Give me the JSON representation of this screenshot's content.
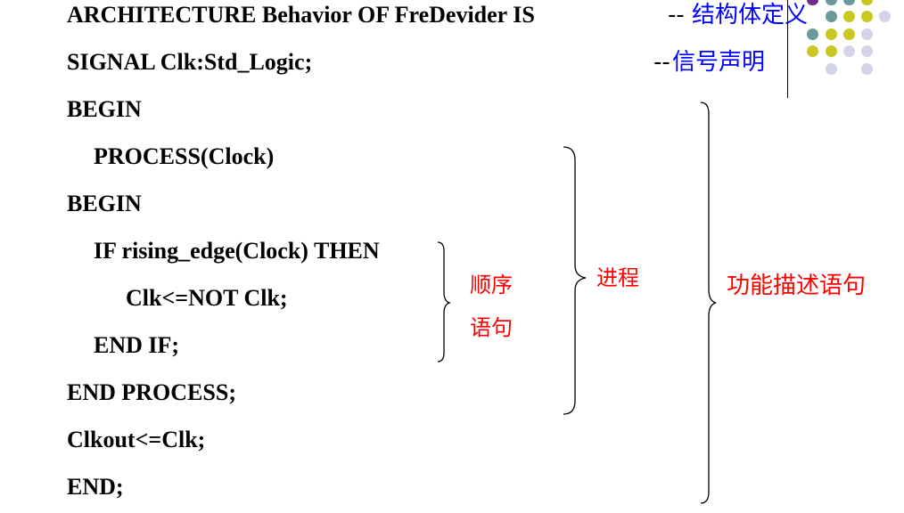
{
  "code_lines": [
    "ARCHITECTURE  Behavior  OF  FreDevider IS",
    "SIGNAL Clk:Std_Logic;",
    "BEGIN",
    "PROCESS(Clock)",
    "BEGIN",
    "IF rising_edge(Clock) THEN",
    "Clk<=NOT Clk;",
    "END IF;",
    "END PROCESS;",
    "Clkout<=Clk;",
    "END;"
  ],
  "comments": {
    "arch_prefix": "--",
    "arch_text": "结构体定义",
    "signal_prefix": "--",
    "signal_text": "信号声明"
  },
  "labels": {
    "sequential_line1": "顺序",
    "sequential_line2": "语句",
    "process": "进程",
    "functional": "功能描述语句"
  },
  "colors": {
    "code": "#000000",
    "comment_prefix": "#000000",
    "comment_text": "#0000ff",
    "label": "#ff0000",
    "dot_purple": "#6c2d8c",
    "dot_teal": "#6b9a9c",
    "dot_yellow": "#c8c820",
    "dot_lavender": "#d4d4e8"
  }
}
